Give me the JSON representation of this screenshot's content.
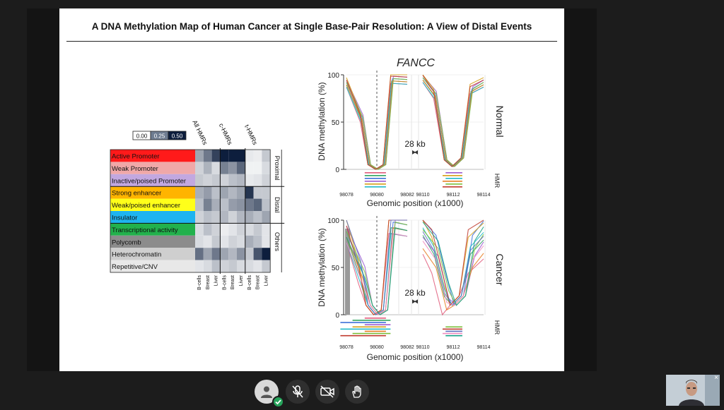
{
  "slide": {
    "title": "A DNA Methylation Map of Human Cancer at Single Base-Pair Resolution: A View of Distal Events"
  },
  "heatmap": {
    "legend": [
      {
        "label": "0.00",
        "color": "#ffffff"
      },
      {
        "label": "0.25",
        "color": "#6f7d91"
      },
      {
        "label": "0.50",
        "color": "#0d1e3d"
      }
    ],
    "column_groups": [
      "All HMRs",
      "c-HMRs",
      "t-HMRs"
    ],
    "column_labels": [
      "B-cells",
      "Breast",
      "Liver",
      "B-cells",
      "Breast",
      "Liver",
      "B-cells",
      "Breast",
      "Liver"
    ],
    "row_groups": [
      "Proximal",
      "Distal",
      "Others"
    ],
    "rows": [
      {
        "label": "Active Promoter",
        "color": "#ff1a1a",
        "values": [
          0.2,
          0.3,
          0.42,
          0.5,
          0.5,
          0.5,
          0.05,
          0.04,
          0.12
        ]
      },
      {
        "label": "Weak Promoter",
        "color": "#f0a8a8",
        "values": [
          0.1,
          0.17,
          0.08,
          0.28,
          0.24,
          0.34,
          0.03,
          0.03,
          0.08
        ]
      },
      {
        "label": "Inactive/poised Promoter",
        "color": "#c2a8e0",
        "values": [
          0.12,
          0.1,
          0.12,
          0.1,
          0.14,
          0.16,
          0.05,
          0.06,
          0.1
        ]
      },
      {
        "label": "Strong enhancer",
        "color": "#ffb400",
        "values": [
          0.18,
          0.22,
          0.14,
          0.2,
          0.16,
          0.2,
          0.45,
          0.12,
          0.12
        ]
      },
      {
        "label": "Weak/poised enhancer",
        "color": "#ffff1a",
        "values": [
          0.14,
          0.28,
          0.18,
          0.14,
          0.22,
          0.24,
          0.3,
          0.34,
          0.14
        ]
      },
      {
        "label": "Insulator",
        "color": "#1eb4f0",
        "values": [
          0.1,
          0.14,
          0.12,
          0.16,
          0.1,
          0.16,
          0.18,
          0.14,
          0.2
        ]
      },
      {
        "label": "Transcriptional activity",
        "color": "#22b14c",
        "values": [
          0.08,
          0.14,
          0.1,
          0.04,
          0.06,
          0.1,
          0.08,
          0.12,
          0.06
        ]
      },
      {
        "label": "Polycomb",
        "color": "#8c8c8c",
        "values": [
          0.08,
          0.06,
          0.12,
          0.06,
          0.1,
          0.08,
          0.18,
          0.14,
          0.06
        ]
      },
      {
        "label": "Heterochromatin",
        "color": "#cfcfcf",
        "values": [
          0.32,
          0.2,
          0.3,
          0.2,
          0.16,
          0.24,
          0.12,
          0.38,
          0.5
        ]
      },
      {
        "label": "Repetitive/CNV",
        "color": "#e8e8e8",
        "values": [
          0.06,
          0.08,
          0.14,
          0.1,
          0.12,
          0.08,
          0.08,
          0.06,
          0.12
        ]
      }
    ]
  },
  "line_panels": {
    "gene": "FANCC",
    "gap_label": "28 kb",
    "ylabel": "DNA methylation (%)",
    "xlabel": "Genomic position (x1000)",
    "hmr_label": "HMR",
    "y_ticks": [
      "0",
      "50",
      "100"
    ],
    "x_ticks": [
      "98078",
      "98080",
      "98082",
      "98110",
      "98112",
      "98114"
    ],
    "panels": [
      {
        "label": "Normal"
      },
      {
        "label": "Cancer"
      }
    ]
  },
  "chart_data": [
    {
      "type": "heatmap",
      "title": "",
      "columns": [
        "All HMRs B-cells",
        "All HMRs Breast",
        "All HMRs Liver",
        "c-HMRs B-cells",
        "c-HMRs Breast",
        "c-HMRs Liver",
        "t-HMRs B-cells",
        "t-HMRs Breast",
        "t-HMRs Liver"
      ],
      "rows": [
        "Active Promoter",
        "Weak Promoter",
        "Inactive/poised Promoter",
        "Strong enhancer",
        "Weak/poised enhancer",
        "Insulator",
        "Transcriptional activity",
        "Polycomb",
        "Heterochromatin",
        "Repetitive/CNV"
      ],
      "scale": [
        0,
        0.5
      ]
    },
    {
      "type": "line",
      "title": "FANCC",
      "panel": "Normal",
      "xlabel": "Genomic position (x1000)",
      "ylabel": "DNA methylation (%)",
      "ylim": [
        0,
        100
      ],
      "segments": [
        {
          "x": [
            98078,
            98079,
            98079.5,
            98080,
            98080.5,
            98081,
            98082
          ],
          "y": [
            92,
            55,
            5,
            0,
            5,
            96,
            95
          ]
        },
        {
          "x": [
            98110,
            98110.8,
            98111.5,
            98112,
            98112.6,
            98113.2,
            98114
          ],
          "y": [
            97,
            80,
            10,
            3,
            12,
            85,
            92
          ]
        }
      ]
    },
    {
      "type": "line",
      "title": "",
      "panel": "Cancer",
      "xlabel": "Genomic position (x1000)",
      "ylabel": "DNA methylation (%)",
      "ylim": [
        0,
        100
      ],
      "segments": [
        {
          "x": [
            98078,
            98079,
            98079.5,
            98080,
            98080.5,
            98081,
            98082
          ],
          "y": [
            88,
            45,
            10,
            0,
            5,
            98,
            95
          ]
        },
        {
          "x": [
            98110,
            98110.8,
            98111.5,
            98112,
            98112.6,
            98113.2,
            98114
          ],
          "y": [
            90,
            70,
            25,
            10,
            20,
            70,
            85
          ]
        }
      ]
    }
  ],
  "toolbar": {
    "buttons": [
      "user",
      "mic-muted",
      "camera-off",
      "raise-hand"
    ]
  },
  "webcam": {
    "close": "×"
  }
}
